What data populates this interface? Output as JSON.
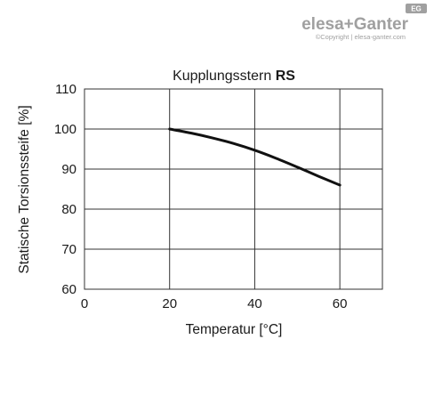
{
  "logo": {
    "brand_left": "elesa",
    "brand_plus": "+",
    "brand_right": "Ganter",
    "badge": "EG",
    "copyright": "©Copyright | elesa-ganter.com"
  },
  "colors": {
    "curve": "#111111",
    "grid": "#333333",
    "logo": "#a0a0a0"
  },
  "chart_data": {
    "type": "line",
    "title": "Kupplungsstern",
    "title_bold": "RS",
    "xlabel": "Temperatur [°C]",
    "ylabel": "Statische Torsionssteife [%]",
    "xlim": [
      0,
      70
    ],
    "ylim": [
      60,
      110
    ],
    "x_ticks": [
      0,
      20,
      40,
      60
    ],
    "y_ticks": [
      60,
      70,
      80,
      90,
      100,
      110
    ],
    "grid": true,
    "series": [
      {
        "x": [
          20,
          25,
          30,
          35,
          40,
          45,
          50,
          55,
          60
        ],
        "values": [
          100,
          99,
          97.8,
          96.4,
          94.7,
          92.7,
          90.5,
          88.2,
          86
        ]
      }
    ]
  }
}
